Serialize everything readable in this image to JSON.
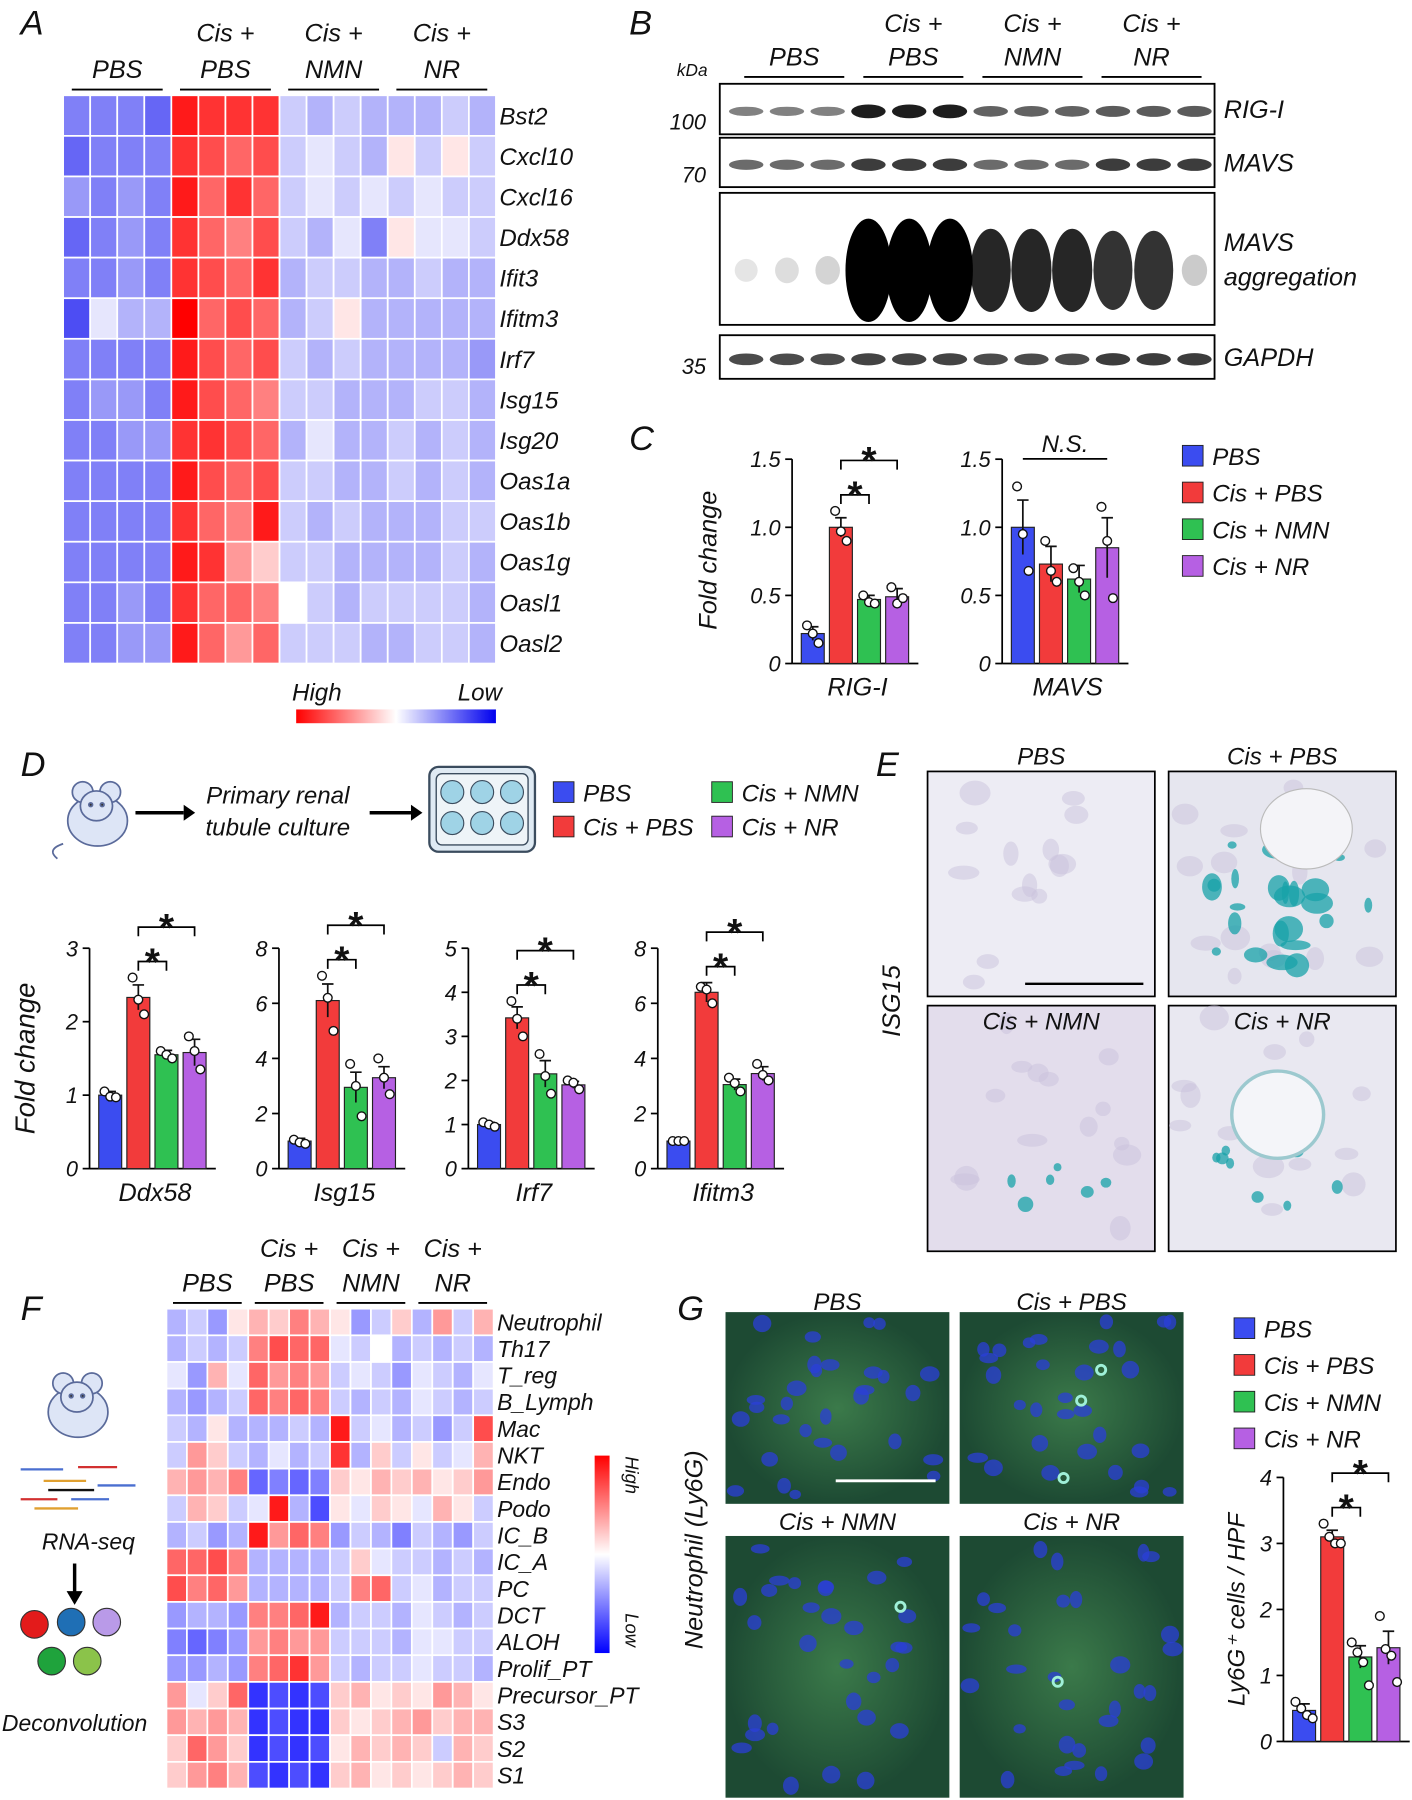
{
  "letters": [
    "A",
    "B",
    "C",
    "D",
    "E",
    "F",
    "G"
  ],
  "A": {
    "groups": [
      [
        "PBS"
      ],
      [
        "Cis +",
        "PBS"
      ],
      [
        "Cis +",
        "NMN"
      ],
      [
        "Cis +",
        "NR"
      ]
    ],
    "rows": [
      "Bst2",
      "Cxcl10",
      "Cxcl16",
      "Ddx58",
      "Ifit3",
      "Ifitm3",
      "Irf7",
      "Isg15",
      "Isg20",
      "Oas1a",
      "Oas1b",
      "Oas1g",
      "Oasl1",
      "Oasl2"
    ],
    "high_color": "#ff0000",
    "low_color": "#0000ee",
    "legend_high": "High",
    "legend_low": "Low",
    "matrix": [
      [
        -0.5,
        -0.5,
        -0.5,
        -0.6,
        0.9,
        0.8,
        0.8,
        0.8,
        -0.2,
        -0.3,
        -0.2,
        -0.3,
        -0.3,
        -0.3,
        -0.2,
        -0.3
      ],
      [
        -0.6,
        -0.5,
        -0.5,
        -0.5,
        0.8,
        0.7,
        0.6,
        0.7,
        -0.2,
        -0.1,
        -0.2,
        -0.3,
        0.1,
        -0.2,
        0.1,
        -0.2
      ],
      [
        -0.4,
        -0.5,
        -0.4,
        -0.5,
        0.9,
        0.6,
        0.8,
        0.6,
        -0.2,
        -0.1,
        -0.2,
        -0.1,
        -0.2,
        -0.1,
        -0.2,
        -0.2
      ],
      [
        -0.6,
        -0.5,
        -0.4,
        -0.5,
        0.8,
        0.6,
        0.5,
        0.7,
        -0.2,
        -0.3,
        -0.1,
        -0.5,
        0.1,
        -0.1,
        -0.1,
        -0.2
      ],
      [
        -0.5,
        -0.5,
        -0.4,
        -0.5,
        0.8,
        0.7,
        0.6,
        0.8,
        -0.3,
        -0.2,
        -0.2,
        -0.3,
        -0.3,
        -0.2,
        -0.3,
        -0.3
      ],
      [
        -0.7,
        -0.1,
        -0.3,
        -0.3,
        1,
        0.6,
        0.7,
        0.6,
        -0.3,
        -0.2,
        0.1,
        -0.3,
        -0.3,
        -0.3,
        -0.3,
        -0.3
      ],
      [
        -0.5,
        -0.5,
        -0.5,
        -0.5,
        0.9,
        0.7,
        0.6,
        0.7,
        -0.2,
        -0.3,
        -0.2,
        -0.3,
        -0.3,
        -0.3,
        -0.3,
        -0.4
      ],
      [
        -0.5,
        -0.4,
        -0.4,
        -0.5,
        0.9,
        0.7,
        0.6,
        0.5,
        -0.2,
        -0.2,
        -0.3,
        -0.3,
        -0.3,
        -0.2,
        -0.2,
        -0.3
      ],
      [
        -0.5,
        -0.5,
        -0.4,
        -0.4,
        0.8,
        0.8,
        0.7,
        0.6,
        -0.3,
        -0.1,
        -0.3,
        -0.3,
        -0.2,
        -0.3,
        -0.2,
        -0.3
      ],
      [
        -0.5,
        -0.5,
        -0.5,
        -0.5,
        0.9,
        0.7,
        0.6,
        0.7,
        -0.2,
        -0.2,
        -0.3,
        -0.3,
        -0.2,
        -0.3,
        -0.2,
        -0.3
      ],
      [
        -0.5,
        -0.5,
        -0.5,
        -0.5,
        0.8,
        0.6,
        0.5,
        0.9,
        -0.2,
        -0.3,
        -0.2,
        -0.3,
        -0.3,
        -0.3,
        -0.2,
        -0.2
      ],
      [
        -0.5,
        -0.5,
        -0.5,
        -0.5,
        0.9,
        0.8,
        0.4,
        0.2,
        -0.2,
        -0.2,
        -0.3,
        -0.3,
        -0.3,
        -0.3,
        -0.2,
        -0.3
      ],
      [
        -0.5,
        -0.5,
        -0.4,
        -0.5,
        0.8,
        0.6,
        0.6,
        0.5,
        0,
        -0.2,
        -0.3,
        -0.2,
        -0.2,
        -0.2,
        -0.2,
        -0.3
      ],
      [
        -0.5,
        -0.5,
        -0.4,
        -0.4,
        0.9,
        0.6,
        0.4,
        0.6,
        -0.2,
        -0.2,
        -0.2,
        -0.3,
        -0.3,
        -0.2,
        -0.2,
        -0.3
      ]
    ]
  },
  "B": {
    "kda_label": "kDa",
    "groups": [
      [
        "PBS"
      ],
      [
        "Cis +",
        "PBS"
      ],
      [
        "Cis +",
        "NMN"
      ],
      [
        "Cis +",
        "NR"
      ]
    ],
    "blots": [
      {
        "label_lines": [
          "RIG-I"
        ],
        "marker": 100
      },
      {
        "label_lines": [
          "MAVS"
        ],
        "marker": 70
      },
      {
        "label_lines": [
          "MAVS",
          "aggregation"
        ]
      },
      {
        "label_lines": [
          "GAPDH"
        ],
        "marker": 35
      }
    ]
  },
  "C": {
    "type": "bar",
    "y_label": "Fold change",
    "categories": [
      "RIG-I",
      "MAVS"
    ],
    "ylim": [
      0,
      1.5
    ],
    "yticks": [
      0,
      0.5,
      {
        "value": 1,
        "label": "1.0"
      },
      1.5
    ],
    "annotations": [
      "*",
      "*",
      "N.S."
    ],
    "series": [
      {
        "name": "PBS",
        "color": "#3b4cf0",
        "values": [
          0.22,
          1.0
        ],
        "errors": [
          0.05,
          0.2
        ],
        "points": [
          [
            0.28,
            0.22,
            0.15
          ],
          [
            1.3,
            0.95,
            0.68
          ]
        ]
      },
      {
        "name": "Cis + PBS",
        "color": "#f23b3b",
        "values": [
          1.0,
          0.73
        ],
        "errors": [
          0.07,
          0.13
        ],
        "points": [
          [
            1.12,
            0.97,
            0.9
          ],
          [
            0.9,
            0.68,
            0.6
          ]
        ]
      },
      {
        "name": "Cis + NMN",
        "color": "#2fc152",
        "values": [
          0.47,
          0.62
        ],
        "errors": [
          0.03,
          0.1
        ],
        "points": [
          [
            0.5,
            0.45,
            0.44
          ],
          [
            0.7,
            0.6,
            0.5
          ]
        ]
      },
      {
        "name": "Cis + NR",
        "color": "#b660e3",
        "values": [
          0.49,
          0.85
        ],
        "errors": [
          0.06,
          0.22
        ],
        "points": [
          [
            0.56,
            0.44,
            0.48
          ],
          [
            1.15,
            0.9,
            0.48
          ]
        ]
      }
    ]
  },
  "D": {
    "type": "bar",
    "workflow": [
      "Primary renal",
      "tubule culture"
    ],
    "y_label": "Fold change",
    "categories": [
      "Ddx58",
      "Isg15",
      "Irf7",
      "Ifitm3"
    ],
    "ylims": [
      [
        0,
        3
      ],
      [
        0,
        8
      ],
      [
        0,
        5
      ],
      [
        0,
        8
      ]
    ],
    "yticks": [
      [
        0,
        1,
        2,
        3
      ],
      [
        0,
        2,
        4,
        6,
        8
      ],
      [
        0,
        1,
        2,
        3,
        4,
        5
      ],
      [
        0,
        2,
        4,
        6,
        8
      ]
    ],
    "annotations": [
      [
        "*",
        "*"
      ],
      [
        "*",
        "*"
      ],
      [
        "*",
        "*"
      ],
      [
        "*",
        "*"
      ]
    ],
    "series": [
      {
        "name": "PBS",
        "color": "#3b4cf0",
        "values": [
          1.0,
          1.0,
          1.0,
          1.0
        ],
        "errors": [
          0.05,
          0.1,
          0.05,
          0.02
        ],
        "points": [
          [
            1.05,
            0.98,
            0.97
          ],
          [
            1.05,
            0.95,
            0.9
          ],
          [
            1.05,
            1.0,
            0.95
          ],
          [
            1.0,
            1.0,
            1.0
          ]
        ]
      },
      {
        "name": "Cis + PBS",
        "color": "#f23b3b",
        "values": [
          2.33,
          6.1,
          3.42,
          6.4
        ],
        "errors": [
          0.17,
          0.6,
          0.25,
          0.35
        ],
        "points": [
          [
            2.6,
            2.3,
            2.1
          ],
          [
            7.0,
            6.2,
            5.0
          ],
          [
            3.8,
            3.4,
            3.0
          ],
          [
            6.6,
            6.5,
            6.0
          ]
        ]
      },
      {
        "name": "Cis + NMN",
        "color": "#2fc152",
        "values": [
          1.55,
          2.95,
          2.15,
          3.05
        ],
        "errors": [
          0.06,
          0.55,
          0.3,
          0.2
        ],
        "points": [
          [
            1.6,
            1.55,
            1.5
          ],
          [
            3.8,
            3.0,
            1.9
          ],
          [
            2.6,
            2.1,
            1.7
          ],
          [
            3.3,
            3.1,
            2.8
          ]
        ]
      },
      {
        "name": "Cis + NR",
        "color": "#b660e3",
        "values": [
          1.58,
          3.3,
          1.9,
          3.45
        ],
        "errors": [
          0.18,
          0.4,
          0.08,
          0.25
        ],
        "points": [
          [
            1.8,
            1.6,
            1.35
          ],
          [
            4.0,
            3.3,
            2.7
          ],
          [
            2.0,
            1.95,
            1.8
          ],
          [
            3.8,
            3.4,
            3.2
          ]
        ]
      }
    ]
  },
  "E": {
    "stain_label": "ISG15",
    "images": [
      "PBS",
      "Cis + PBS",
      "Cis + NMN",
      "Cis + NR"
    ]
  },
  "F": {
    "groups": [
      [
        "PBS"
      ],
      [
        "Cis +",
        "PBS"
      ],
      [
        "Cis +",
        "NMN"
      ],
      [
        "Cis +",
        "NR"
      ]
    ],
    "workflow": [
      "RNA-seq",
      "Deconvolution"
    ],
    "rows": [
      "Neutrophil",
      "Th17",
      "T_reg",
      "B_Lymph",
      "Mac",
      "NKT",
      "Endo",
      "Podo",
      "IC_B",
      "IC_A",
      "PC",
      "DCT",
      "ALOH",
      "Prolif_PT",
      "Precursor_PT",
      "S3",
      "S2",
      "S1"
    ],
    "high_color": "#ff0000",
    "low_color": "#0000ff",
    "legend_high": "High",
    "legend_low": "Low",
    "matrix": [
      [
        -0.3,
        -0.2,
        -0.4,
        0.1,
        0.3,
        0.2,
        0.5,
        0.3,
        0.1,
        -0.4,
        -0.2,
        0.2,
        -0.3,
        0.4,
        -0.2,
        0.3
      ],
      [
        -0.3,
        -0.2,
        -0.3,
        -0.2,
        0.5,
        0.7,
        0.6,
        0.6,
        -0.1,
        -0.2,
        0,
        -0.3,
        -0.2,
        -0.3,
        -0.2,
        -0.3
      ],
      [
        -0.1,
        -0.4,
        0.3,
        -0.1,
        0.6,
        0.4,
        0.5,
        0.4,
        -0.2,
        -0.1,
        -0.2,
        -0.4,
        -0.1,
        -0.2,
        -0.3,
        -0.1
      ],
      [
        -0.3,
        -0.4,
        -0.3,
        -0.2,
        0.6,
        0.5,
        0.6,
        0.5,
        -0.2,
        -0.3,
        -0.2,
        -0.3,
        -0.1,
        -0.2,
        -0.3,
        -0.2
      ],
      [
        -0.2,
        -0.3,
        0.1,
        -0.3,
        -0.3,
        -0.3,
        -0.2,
        -0.3,
        0.9,
        -0.2,
        -0.1,
        -0.3,
        -0.2,
        -0.4,
        -0.2,
        0.7
      ],
      [
        -0.2,
        0.4,
        0.2,
        -0.2,
        -0.3,
        -0.1,
        -0.3,
        -0.2,
        0.8,
        -0.3,
        0.2,
        -0.2,
        0.1,
        -0.2,
        -0.1,
        0.3
      ],
      [
        0.3,
        0.4,
        0.3,
        0.5,
        -0.6,
        -0.5,
        -0.6,
        -0.5,
        0.2,
        0.1,
        0.3,
        0.2,
        0.3,
        0.1,
        0.2,
        0.4
      ],
      [
        -0.2,
        0.3,
        0.2,
        -0.2,
        -0.1,
        0.9,
        -0.3,
        -0.7,
        0.1,
        -0.1,
        0.2,
        0.1,
        -0.1,
        0.3,
        0.1,
        -0.2
      ],
      [
        -0.3,
        -0.2,
        -0.4,
        -0.3,
        0.9,
        0.4,
        0.6,
        0.5,
        -0.4,
        -0.2,
        -0.3,
        -0.5,
        -0.2,
        -0.3,
        -0.4,
        -0.2
      ],
      [
        0.6,
        0.6,
        0.7,
        0.5,
        -0.3,
        -0.3,
        -0.3,
        -0.3,
        -0.2,
        0.2,
        -0.1,
        -0.2,
        -0.2,
        -0.3,
        -0.2,
        -0.3
      ],
      [
        0.7,
        0.5,
        0.6,
        0.4,
        -0.3,
        -0.3,
        -0.3,
        -0.3,
        -0.2,
        0.5,
        0.6,
        -0.2,
        -0.1,
        -0.3,
        -0.2,
        -0.2
      ],
      [
        -0.4,
        -0.3,
        -0.3,
        -0.4,
        0.5,
        0.5,
        0.6,
        0.9,
        -0.3,
        -0.2,
        -0.2,
        -0.3,
        -0.1,
        -0.2,
        -0.3,
        -0.2
      ],
      [
        -0.5,
        -0.6,
        -0.5,
        -0.4,
        0.4,
        0.5,
        0.4,
        0.4,
        -0.2,
        -0.2,
        -0.2,
        -0.3,
        -0.1,
        -0.1,
        -0.2,
        -0.2
      ],
      [
        -0.4,
        -0.4,
        -0.3,
        -0.4,
        0.5,
        0.6,
        0.8,
        0.4,
        -0.2,
        -0.3,
        -0.2,
        -0.2,
        -0.1,
        -0.2,
        -0.2,
        -0.3
      ],
      [
        0.4,
        -0.1,
        0.2,
        0.6,
        -0.8,
        -0.7,
        -0.8,
        -0.7,
        0.2,
        0.3,
        0.1,
        0.2,
        0.1,
        0.4,
        0.3,
        0.1
      ],
      [
        0.4,
        0.3,
        0.4,
        0.3,
        -0.8,
        -0.7,
        -0.8,
        -0.8,
        0.2,
        0.1,
        0.2,
        0.3,
        0.4,
        0.2,
        0.3,
        0.3
      ],
      [
        0.2,
        0.6,
        0.4,
        0.2,
        -0.8,
        -0.7,
        -0.8,
        -0.7,
        0.1,
        0.3,
        0.2,
        0.3,
        0.2,
        -0.2,
        0.3,
        0.2
      ],
      [
        0.2,
        0.4,
        0.5,
        0.3,
        -0.7,
        -0.8,
        -0.7,
        -0.8,
        0.2,
        0.3,
        0.1,
        0.2,
        0.1,
        0.2,
        0.3,
        0.2
      ]
    ]
  },
  "G": {
    "type": "bar",
    "images": [
      "PBS",
      "Cis + PBS",
      "Cis + NMN",
      "Cis + NR"
    ],
    "image_axis_label": "Neutrophil (Ly6G)",
    "y_label": "Ly6G⁺ cells / HPF",
    "ylim": [
      0,
      4
    ],
    "yticks": [
      0,
      1,
      2,
      3,
      4
    ],
    "annotations": [
      "*",
      "*"
    ],
    "series": [
      {
        "name": "PBS",
        "color": "#3b4cf0",
        "values": [
          0.47
        ],
        "errors": [
          0.1
        ],
        "points": [
          [
            0.6,
            0.5,
            0.4,
            0.35
          ]
        ]
      },
      {
        "name": "Cis + PBS",
        "color": "#f23b3b",
        "values": [
          3.1
        ],
        "errors": [
          0.1
        ],
        "points": [
          [
            3.3,
            3.1,
            3.0,
            3.0
          ]
        ]
      },
      {
        "name": "Cis + NMN",
        "color": "#2fc152",
        "values": [
          1.28
        ],
        "errors": [
          0.17
        ],
        "points": [
          [
            1.5,
            1.35,
            1.2,
            0.85
          ]
        ]
      },
      {
        "name": "Cis + NR",
        "color": "#b660e3",
        "values": [
          1.42
        ],
        "errors": [
          0.25
        ],
        "points": [
          [
            1.9,
            1.4,
            1.3,
            0.9
          ]
        ]
      }
    ]
  }
}
